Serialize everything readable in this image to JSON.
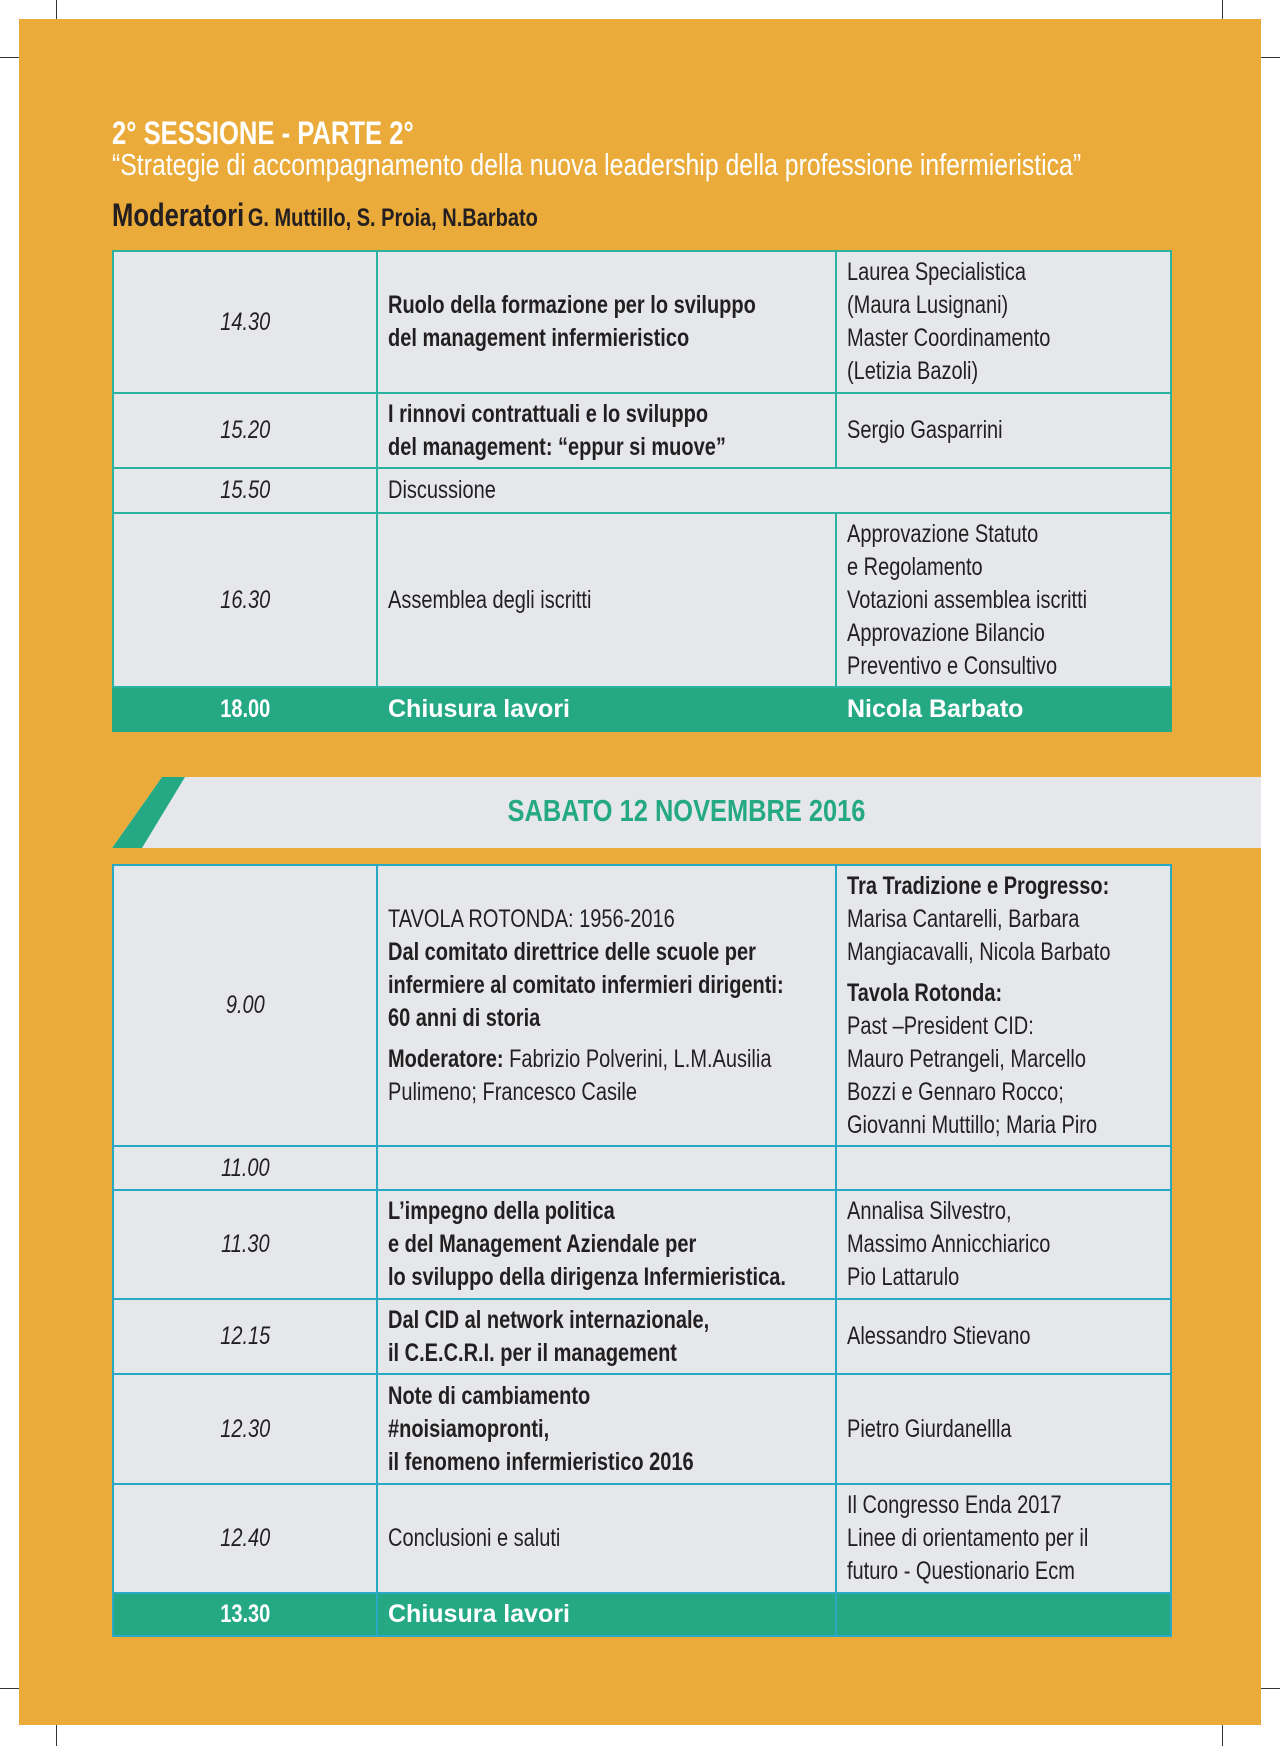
{
  "header": {
    "title": "2° SESSIONE - PARTE 2°",
    "subtitle": "“Strategie di accompagnamento della nuova leadership della professione infermieristica”",
    "moderators_label": "Moderatori",
    "moderators": "G. Muttillo, S. Proia, N.Barbato"
  },
  "colors": {
    "background": "#EBAB3A",
    "accent": "#25A985",
    "cell": "#E6E7EA"
  },
  "session1": {
    "rows": [
      {
        "time": "14.30",
        "middle": [
          {
            "t": "Ruolo della formazione per lo sviluppo",
            "b": true
          },
          {
            "t": "del management infermieristico",
            "b": true
          }
        ],
        "right": [
          {
            "t": "Laurea Specialistica"
          },
          {
            "t": "(Maura Lusignani)"
          },
          {
            "t": "Master Coordinamento"
          },
          {
            "t": "(Letizia Bazoli)"
          }
        ]
      },
      {
        "time": "15.20",
        "middle": [
          {
            "t": "I rinnovi contrattuali e lo sviluppo",
            "b": true
          },
          {
            "t": "del management: “eppur si muove”",
            "b": true
          }
        ],
        "right": [
          {
            "t": "Sergio Gasparrini"
          }
        ]
      },
      {
        "time": "15.50",
        "middle": [
          {
            "t": "Discussione"
          }
        ],
        "right": [],
        "span": true
      },
      {
        "time": "16.30",
        "middle": [
          {
            "t": "Assemblea degli iscritti"
          }
        ],
        "right": [
          {
            "t": "Approvazione Statuto"
          },
          {
            "t": "e Regolamento"
          },
          {
            "t": "Votazioni assemblea iscritti"
          },
          {
            "t": "Approvazione Bilancio"
          },
          {
            "t": "Preventivo e Consultivo"
          }
        ]
      }
    ],
    "closing": {
      "time": "18.00",
      "label": "Chiusura lavori",
      "speaker": "Nicola Barbato"
    }
  },
  "day_banner": "SABATO 12 NOVEMBRE 2016",
  "session2": {
    "rows": [
      {
        "time": "9.00",
        "middle": [
          {
            "t": "TAVOLA ROTONDA: 1956-2016"
          },
          {
            "t": "Dal comitato direttrice delle scuole per",
            "b": true
          },
          {
            "t": "infermiere al comitato infermieri dirigenti:",
            "b": true
          },
          {
            "t": "60 anni di storia",
            "b": true
          },
          {
            "gap": true
          },
          {
            "t": "Moderatore:",
            "b": true,
            "rest": " Fabrizio Polverini, L.M.Ausilia"
          },
          {
            "t": "Pulimeno;  Francesco Casile"
          }
        ],
        "right": [
          {
            "t": "Tra Tradizione e Progresso:",
            "b": true
          },
          {
            "t": "Marisa Cantarelli, Barbara"
          },
          {
            "t": "Mangiacavalli, Nicola Barbato"
          },
          {
            "gap": true
          },
          {
            "t": "Tavola Rotonda:",
            "b": true
          },
          {
            "t": "Past –President CID:"
          },
          {
            "t": "Mauro Petrangeli, Marcello"
          },
          {
            "t": "Bozzi e Gennaro Rocco;"
          },
          {
            "t": "Giovanni Muttillo; Maria Piro"
          }
        ]
      },
      {
        "time": "11.00",
        "middle": [],
        "right": []
      },
      {
        "time": "11.30",
        "middle": [
          {
            "t": "L’impegno della politica",
            "b": true
          },
          {
            "t": "e del Management Aziendale per",
            "b": true
          },
          {
            "t": "lo sviluppo della dirigenza Infermieristica.",
            "b": true
          }
        ],
        "right": [
          {
            "t": "Annalisa Silvestro,"
          },
          {
            "t": "Massimo Annicchiarico"
          },
          {
            "t": "Pio Lattarulo"
          }
        ]
      },
      {
        "time": "12.15",
        "middle": [
          {
            "t": "Dal CID al network internazionale,",
            "b": true
          },
          {
            "t": "il C.E.C.R.I. per il management",
            "b": true
          }
        ],
        "right": [
          {
            "t": "Alessandro Stievano"
          }
        ]
      },
      {
        "time": "12.30",
        "middle": [
          {
            "t": "Note di cambiamento",
            "b": true
          },
          {
            "t": "#noisiamopronti,",
            "b": true
          },
          {
            "t": "il fenomeno infermieristico 2016",
            "b": true
          }
        ],
        "right": [
          {
            "t": "Pietro Giurdanellla"
          }
        ]
      },
      {
        "time": "12.40",
        "middle": [
          {
            "t": "Conclusioni e saluti"
          }
        ],
        "right": [
          {
            "t": "Il Congresso Enda 2017"
          },
          {
            "t": "Linee di orientamento per il"
          },
          {
            "t": "futuro - Questionario Ecm"
          }
        ]
      }
    ],
    "closing": {
      "time": "13.30",
      "label": "Chiusura lavori",
      "speaker": ""
    }
  }
}
